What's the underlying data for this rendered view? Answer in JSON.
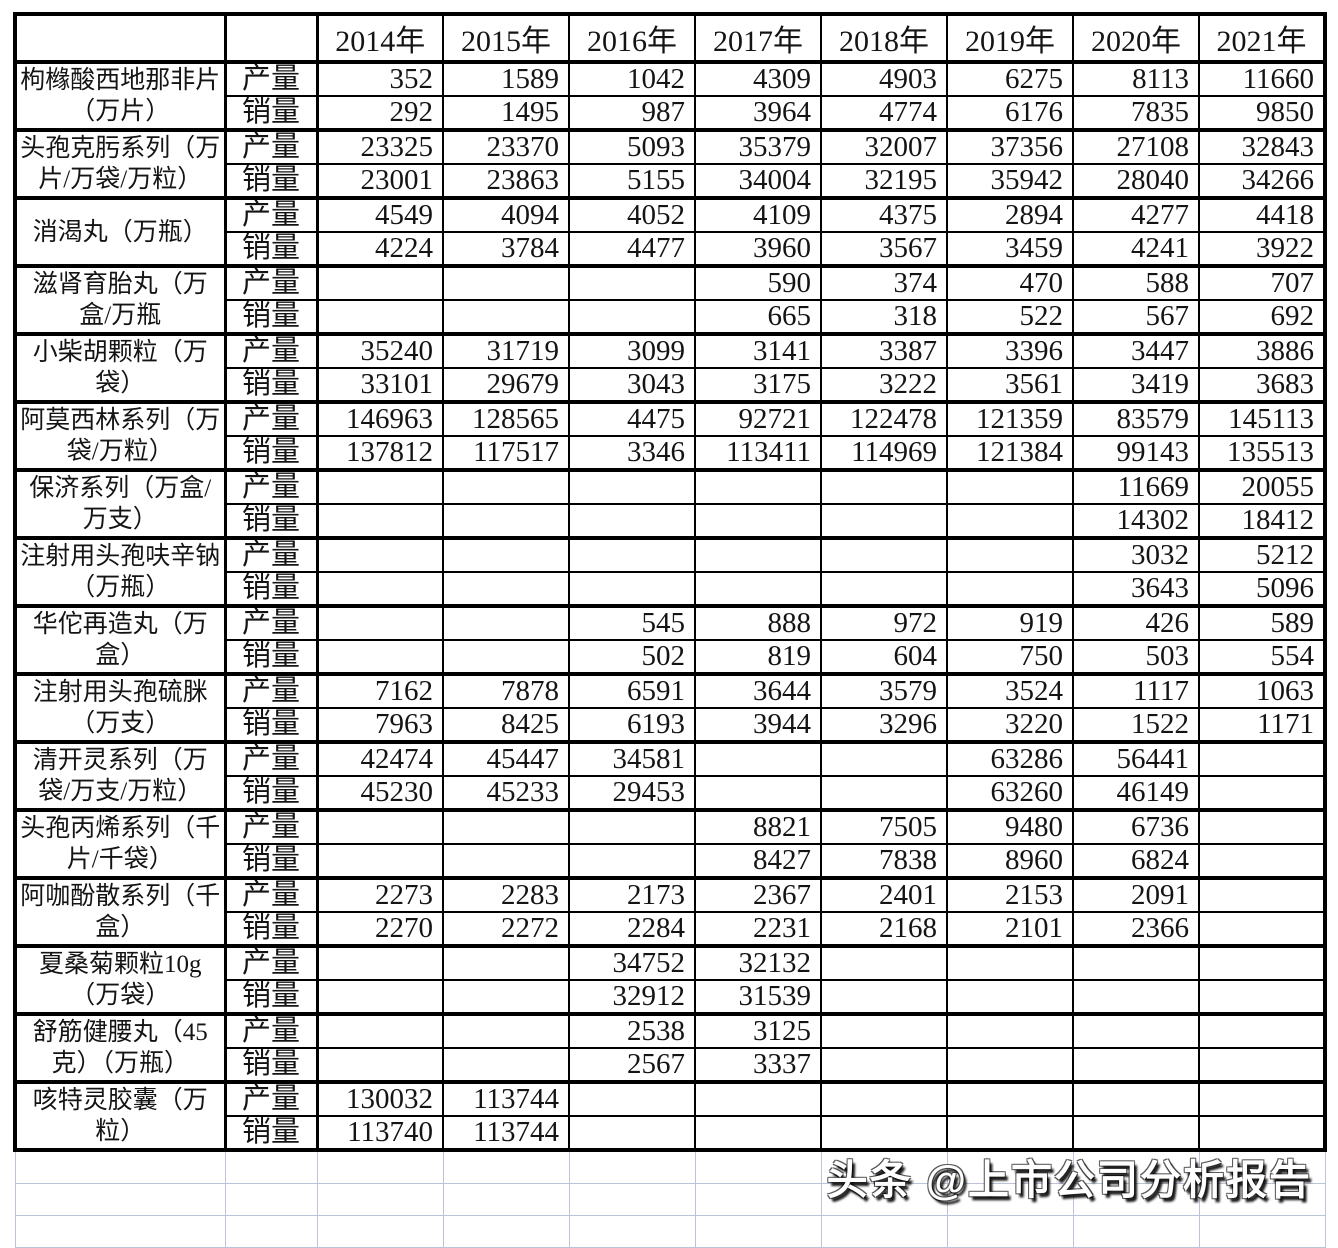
{
  "chart_data": {
    "type": "table",
    "columns": [
      "2014年",
      "2015年",
      "2016年",
      "2017年",
      "2018年",
      "2019年",
      "2020年",
      "2021年"
    ],
    "row_header_labels": {
      "production": "产量",
      "sales": "销量"
    },
    "products": [
      {
        "name": "枸橼酸西地那非片（万片）",
        "production": [
          352,
          1589,
          1042,
          4309,
          4903,
          6275,
          8113,
          11660
        ],
        "sales": [
          292,
          1495,
          987,
          3964,
          4774,
          6176,
          7835,
          9850
        ]
      },
      {
        "name": "头孢克肟系列（万片/万袋/万粒）",
        "production": [
          23325,
          23370,
          5093,
          35379,
          32007,
          37356,
          27108,
          32843
        ],
        "sales": [
          23001,
          23863,
          5155,
          34004,
          32195,
          35942,
          28040,
          34266
        ]
      },
      {
        "name": "消渴丸（万瓶）",
        "production": [
          4549,
          4094,
          4052,
          4109,
          4375,
          2894,
          4277,
          4418
        ],
        "sales": [
          4224,
          3784,
          4477,
          3960,
          3567,
          3459,
          4241,
          3922
        ]
      },
      {
        "name": "滋肾育胎丸（万盒/万瓶",
        "production": [
          null,
          null,
          null,
          590,
          374,
          470,
          588,
          707
        ],
        "sales": [
          null,
          null,
          null,
          665,
          318,
          522,
          567,
          692
        ]
      },
      {
        "name": "小柴胡颗粒（万袋）",
        "production": [
          35240,
          31719,
          3099,
          3141,
          3387,
          3396,
          3447,
          3886
        ],
        "sales": [
          33101,
          29679,
          3043,
          3175,
          3222,
          3561,
          3419,
          3683
        ]
      },
      {
        "name": "阿莫西林系列（万袋/万粒）",
        "production": [
          146963,
          128565,
          4475,
          92721,
          122478,
          121359,
          83579,
          145113
        ],
        "sales": [
          137812,
          117517,
          3346,
          113411,
          114969,
          121384,
          99143,
          135513
        ]
      },
      {
        "name": "保济系列（万盒/万支）",
        "production": [
          null,
          null,
          null,
          null,
          null,
          null,
          11669,
          20055
        ],
        "sales": [
          null,
          null,
          null,
          null,
          null,
          null,
          14302,
          18412
        ]
      },
      {
        "name": "注射用头孢呋辛钠（万瓶）",
        "production": [
          null,
          null,
          null,
          null,
          null,
          null,
          3032,
          5212
        ],
        "sales": [
          null,
          null,
          null,
          null,
          null,
          null,
          3643,
          5096
        ]
      },
      {
        "name": "华佗再造丸（万盒）",
        "production": [
          null,
          null,
          545,
          888,
          972,
          919,
          426,
          589
        ],
        "sales": [
          null,
          null,
          502,
          819,
          604,
          750,
          503,
          554
        ]
      },
      {
        "name": "注射用头孢硫脒（万支）",
        "production": [
          7162,
          7878,
          6591,
          3644,
          3579,
          3524,
          1117,
          1063
        ],
        "sales": [
          7963,
          8425,
          6193,
          3944,
          3296,
          3220,
          1522,
          1171
        ]
      },
      {
        "name": "清开灵系列（万袋/万支/万粒）",
        "production": [
          42474,
          45447,
          34581,
          null,
          null,
          63286,
          56441,
          null
        ],
        "sales": [
          45230,
          45233,
          29453,
          null,
          null,
          63260,
          46149,
          null
        ]
      },
      {
        "name": "头孢丙烯系列（千片/千袋）",
        "production": [
          null,
          null,
          null,
          8821,
          7505,
          9480,
          6736,
          null
        ],
        "sales": [
          null,
          null,
          null,
          8427,
          7838,
          8960,
          6824,
          null
        ]
      },
      {
        "name": "阿咖酚散系列（千盒）",
        "production": [
          2273,
          2283,
          2173,
          2367,
          2401,
          2153,
          2091,
          null
        ],
        "sales": [
          2270,
          2272,
          2284,
          2231,
          2168,
          2101,
          2366,
          null
        ]
      },
      {
        "name": "夏桑菊颗粒10g（万袋）",
        "production": [
          null,
          null,
          34752,
          32132,
          null,
          null,
          null,
          null
        ],
        "sales": [
          null,
          null,
          32912,
          31539,
          null,
          null,
          null,
          null
        ]
      },
      {
        "name": "舒筋健腰丸（45克）（万瓶）",
        "production": [
          null,
          null,
          2538,
          3125,
          null,
          null,
          null,
          null
        ],
        "sales": [
          null,
          null,
          2567,
          3337,
          null,
          null,
          null,
          null
        ]
      },
      {
        "name": "咳特灵胶囊（万粒）",
        "production": [
          130032,
          113744,
          null,
          null,
          null,
          null,
          null,
          null
        ],
        "sales": [
          113740,
          113744,
          null,
          null,
          null,
          null,
          null,
          null
        ]
      }
    ]
  },
  "grid": {
    "empty_trailing_rows": 3
  },
  "annotations": {
    "green_comment_marker": {
      "product_index": 6,
      "metric": "sales",
      "year_index": 6,
      "color": "#17881d"
    }
  },
  "watermark": {
    "text": "头条 @上市公司分析报告"
  },
  "colors": {
    "table_border": "#000000",
    "empty_grid_line": "#bac4d6",
    "marker_green": "#17881d",
    "watermark_fill": "#ffffff",
    "background": "#ffffff"
  }
}
